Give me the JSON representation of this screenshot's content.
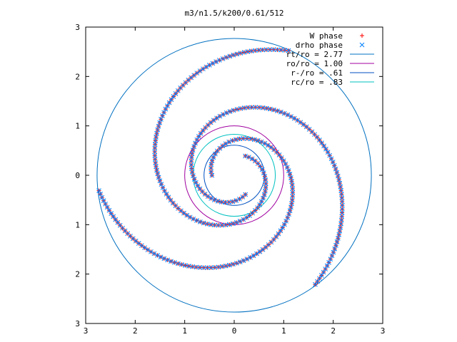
{
  "chart_data": {
    "type": "scatter",
    "title": "m3/n1.5/k200/0.61/512",
    "xlim": [
      -3,
      3
    ],
    "ylim": [
      -3,
      3
    ],
    "xticks": [
      -3,
      -2,
      -1,
      0,
      1,
      2,
      3
    ],
    "yticks": [
      -3,
      -2,
      -1,
      0,
      1,
      2,
      3
    ],
    "x_tick_labels": [
      "3",
      "2",
      "1",
      "0",
      "1",
      "2",
      "3"
    ],
    "y_tick_labels": [
      "3",
      "2",
      "1",
      "0",
      "1",
      "2",
      "3"
    ],
    "grid": false,
    "legend_position": "top-right",
    "scatter_series": [
      {
        "name": "W phase",
        "marker": "plus",
        "color": "#ff0000",
        "spiral": {
          "arms": 3,
          "r_min": 0.45,
          "r_max": 2.75,
          "phase0": 1.05,
          "wind": 1.55,
          "points_per_arm": 110
        }
      },
      {
        "name": "drho phase",
        "marker": "cross",
        "color": "#0080ff",
        "spiral": {
          "arms": 3,
          "r_min": 0.45,
          "r_max": 2.75,
          "phase0": 1.05,
          "wind": 1.55,
          "points_per_arm": 110
        }
      }
    ],
    "circles": [
      {
        "name": "rt/ro = 2.77",
        "r": 2.77,
        "color": "#0070c0"
      },
      {
        "name": "ro/ro = 1.00",
        "r": 1.0,
        "color": "#a000a0"
      },
      {
        "name": "r-/ro = .61",
        "r": 0.61,
        "color": "#0050c0"
      },
      {
        "name": "rc/ro = .83",
        "r": 0.83,
        "color": "#00c0c0"
      }
    ]
  }
}
